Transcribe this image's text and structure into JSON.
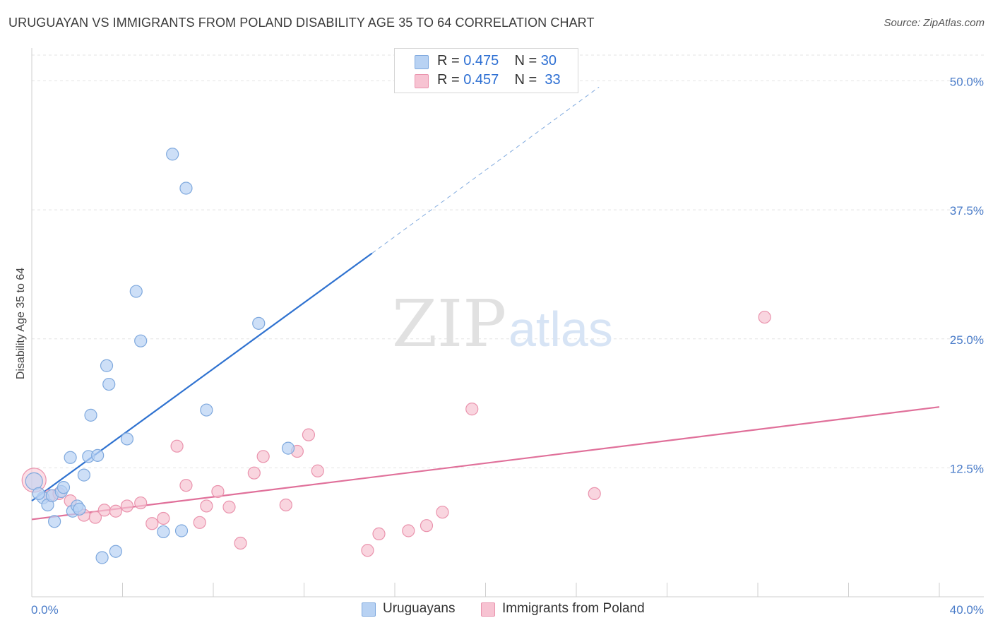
{
  "header": {
    "title": "URUGUAYAN VS IMMIGRANTS FROM POLAND DISABILITY AGE 35 TO 64 CORRELATION CHART",
    "source": "Source: ZipAtlas.com"
  },
  "watermark": {
    "zip": "ZIP",
    "atlas": "atlas"
  },
  "colors": {
    "blue_fill": "#b8d2f3",
    "blue_stroke": "#7fa9de",
    "blue_line": "#2f72d0",
    "pink_fill": "#f7c3d2",
    "pink_stroke": "#ea93ad",
    "pink_line": "#e0709a",
    "tick_text": "#4a7cc9",
    "grid": "#e3e3e3"
  },
  "legend": {
    "rows": [
      {
        "r_label": "R = ",
        "r_value": "0.475",
        "n_label": "N = ",
        "n_value": "30"
      },
      {
        "r_label": "R = ",
        "r_value": "0.457",
        "n_label": "N = ",
        "n_value": "33"
      }
    ]
  },
  "bottom_legend": {
    "uruguayans": "Uruguayans",
    "poland": "Immigrants from Poland"
  },
  "chart_data": {
    "type": "scatter",
    "title": "URUGUAYAN VS IMMIGRANTS FROM POLAND DISABILITY AGE 35 TO 64 CORRELATION CHART",
    "xlabel": "",
    "ylabel": "Disability Age 35 to 64",
    "xlim": [
      0,
      40
    ],
    "ylim": [
      0,
      52.5
    ],
    "y_ticks": [
      12.5,
      25.0,
      37.5,
      50.0
    ],
    "y_tick_labels": [
      "12.5%",
      "25.0%",
      "37.5%",
      "50.0%"
    ],
    "x_tick_labels": {
      "min": "0.0%",
      "max": "40.0%"
    },
    "x_minor_ticks": [
      4,
      8,
      12,
      16,
      20,
      24,
      28,
      32,
      36,
      40
    ],
    "grid": true,
    "legend_position": "top-center",
    "series": [
      {
        "name": "Uruguayans",
        "color": "#b8d2f3",
        "points": [
          [
            0.1,
            11.2
          ],
          [
            0.5,
            9.6
          ],
          [
            0.7,
            8.9
          ],
          [
            0.9,
            9.8
          ],
          [
            1.0,
            7.3
          ],
          [
            1.3,
            10.2
          ],
          [
            1.4,
            10.6
          ],
          [
            1.7,
            13.5
          ],
          [
            1.8,
            8.3
          ],
          [
            2.0,
            8.8
          ],
          [
            2.1,
            8.5
          ],
          [
            2.3,
            11.8
          ],
          [
            2.5,
            13.6
          ],
          [
            2.6,
            17.6
          ],
          [
            2.9,
            13.7
          ],
          [
            3.1,
            3.8
          ],
          [
            3.3,
            22.4
          ],
          [
            3.4,
            20.6
          ],
          [
            3.7,
            4.4
          ],
          [
            4.2,
            15.3
          ],
          [
            4.6,
            29.6
          ],
          [
            4.8,
            24.8
          ],
          [
            5.8,
            6.3
          ],
          [
            6.2,
            42.9
          ],
          [
            6.6,
            6.4
          ],
          [
            6.8,
            39.6
          ],
          [
            7.7,
            18.1
          ],
          [
            10.0,
            26.5
          ],
          [
            11.3,
            14.4
          ],
          [
            0.3,
            10.0
          ]
        ],
        "trend": {
          "x0": 0,
          "y0": 9.3,
          "x1": 15,
          "y1": 33.3,
          "dash_x1": 25,
          "dash_y1": 49.4
        }
      },
      {
        "name": "Immigrants from Poland",
        "color": "#f7c3d2",
        "points": [
          [
            0.1,
            11.3
          ],
          [
            0.8,
            9.8
          ],
          [
            1.2,
            10.0
          ],
          [
            1.7,
            9.3
          ],
          [
            2.3,
            7.9
          ],
          [
            2.8,
            7.7
          ],
          [
            3.2,
            8.4
          ],
          [
            3.7,
            8.3
          ],
          [
            4.2,
            8.8
          ],
          [
            4.8,
            9.1
          ],
          [
            5.3,
            7.1
          ],
          [
            5.8,
            7.6
          ],
          [
            6.4,
            14.6
          ],
          [
            6.8,
            10.8
          ],
          [
            7.4,
            7.2
          ],
          [
            7.7,
            8.8
          ],
          [
            8.2,
            10.2
          ],
          [
            8.7,
            8.7
          ],
          [
            9.2,
            5.2
          ],
          [
            9.8,
            12.0
          ],
          [
            10.2,
            13.6
          ],
          [
            11.2,
            8.9
          ],
          [
            11.7,
            14.1
          ],
          [
            12.2,
            15.7
          ],
          [
            12.6,
            12.2
          ],
          [
            14.8,
            4.5
          ],
          [
            15.3,
            6.1
          ],
          [
            16.6,
            6.4
          ],
          [
            17.4,
            6.9
          ],
          [
            18.1,
            8.2
          ],
          [
            19.4,
            18.2
          ],
          [
            24.8,
            10.0
          ],
          [
            32.3,
            27.1
          ]
        ],
        "trend": {
          "x0": 0,
          "y0": 7.5,
          "x1": 40,
          "y1": 18.4
        }
      }
    ]
  }
}
